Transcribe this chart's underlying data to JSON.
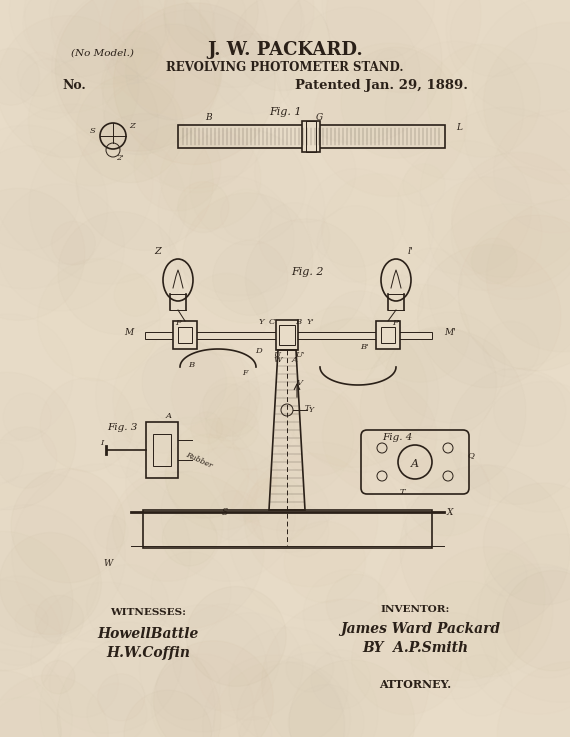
{
  "bg_color": "#e8dcc8",
  "ink_color": "#2a2018",
  "title_line1": "J. W. PACKARD.",
  "title_line2": "REVOLVING PHOTOMETER STAND.",
  "no_model": "(No Model.)",
  "no_label": "No.",
  "patent_date": "Patented Jan. 29, 1889.",
  "fig1_label": "Fig. 1",
  "fig2_label": "Fig. 2",
  "fig3_label": "Fig. 3",
  "fig4_label": "Fig. 4",
  "witnesses_label": "WITNESSES:",
  "inventor_label": "INVENTOR:",
  "attorney_label": "ATTORNEY.",
  "witness_sig1": "HowellBattle",
  "witness_sig2": "H.W.Coffin",
  "inventor_sig": "James Ward Packard",
  "by_sig": "BY  A.P.Smith"
}
